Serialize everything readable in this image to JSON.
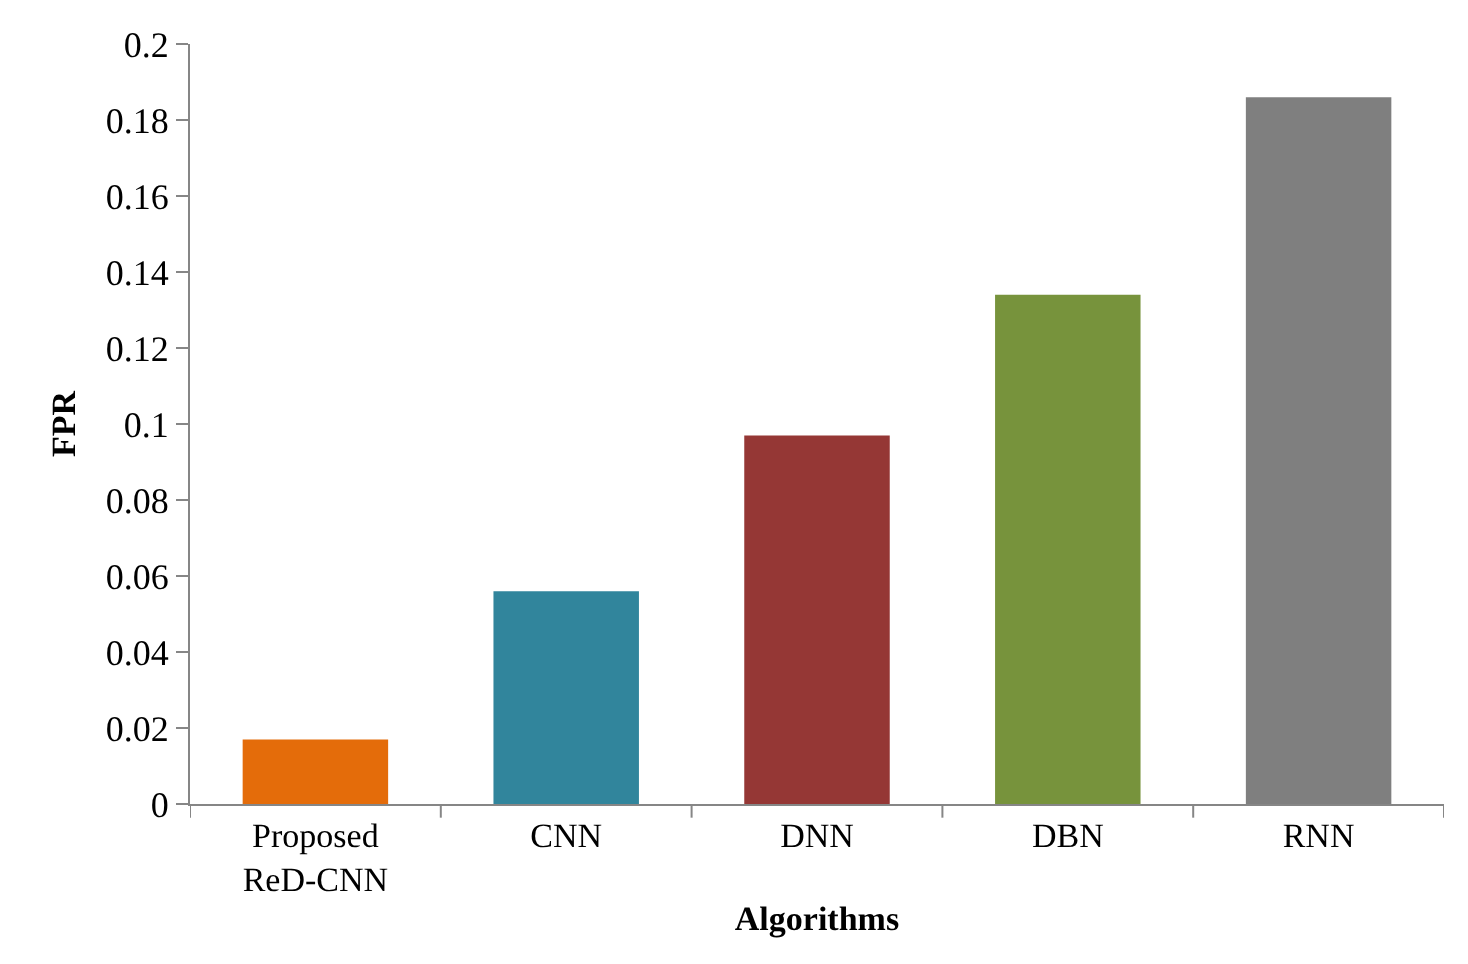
{
  "chart_data": {
    "type": "bar",
    "xlabel": "Algorithms",
    "ylabel": "FPR",
    "categories": [
      "Proposed\nReD-CNN",
      "CNN",
      "DNN",
      "DBN",
      "RNN"
    ],
    "values": [
      0.017,
      0.056,
      0.097,
      0.134,
      0.186
    ],
    "colors": [
      "#e46c0a",
      "#31859c",
      "#953735",
      "#77933c",
      "#7f7f7f"
    ],
    "ylim": [
      0,
      0.2
    ],
    "yticks": [
      0,
      0.02,
      0.04,
      0.06,
      0.08,
      0.1,
      0.12,
      0.14,
      0.16,
      0.18,
      0.2
    ]
  }
}
